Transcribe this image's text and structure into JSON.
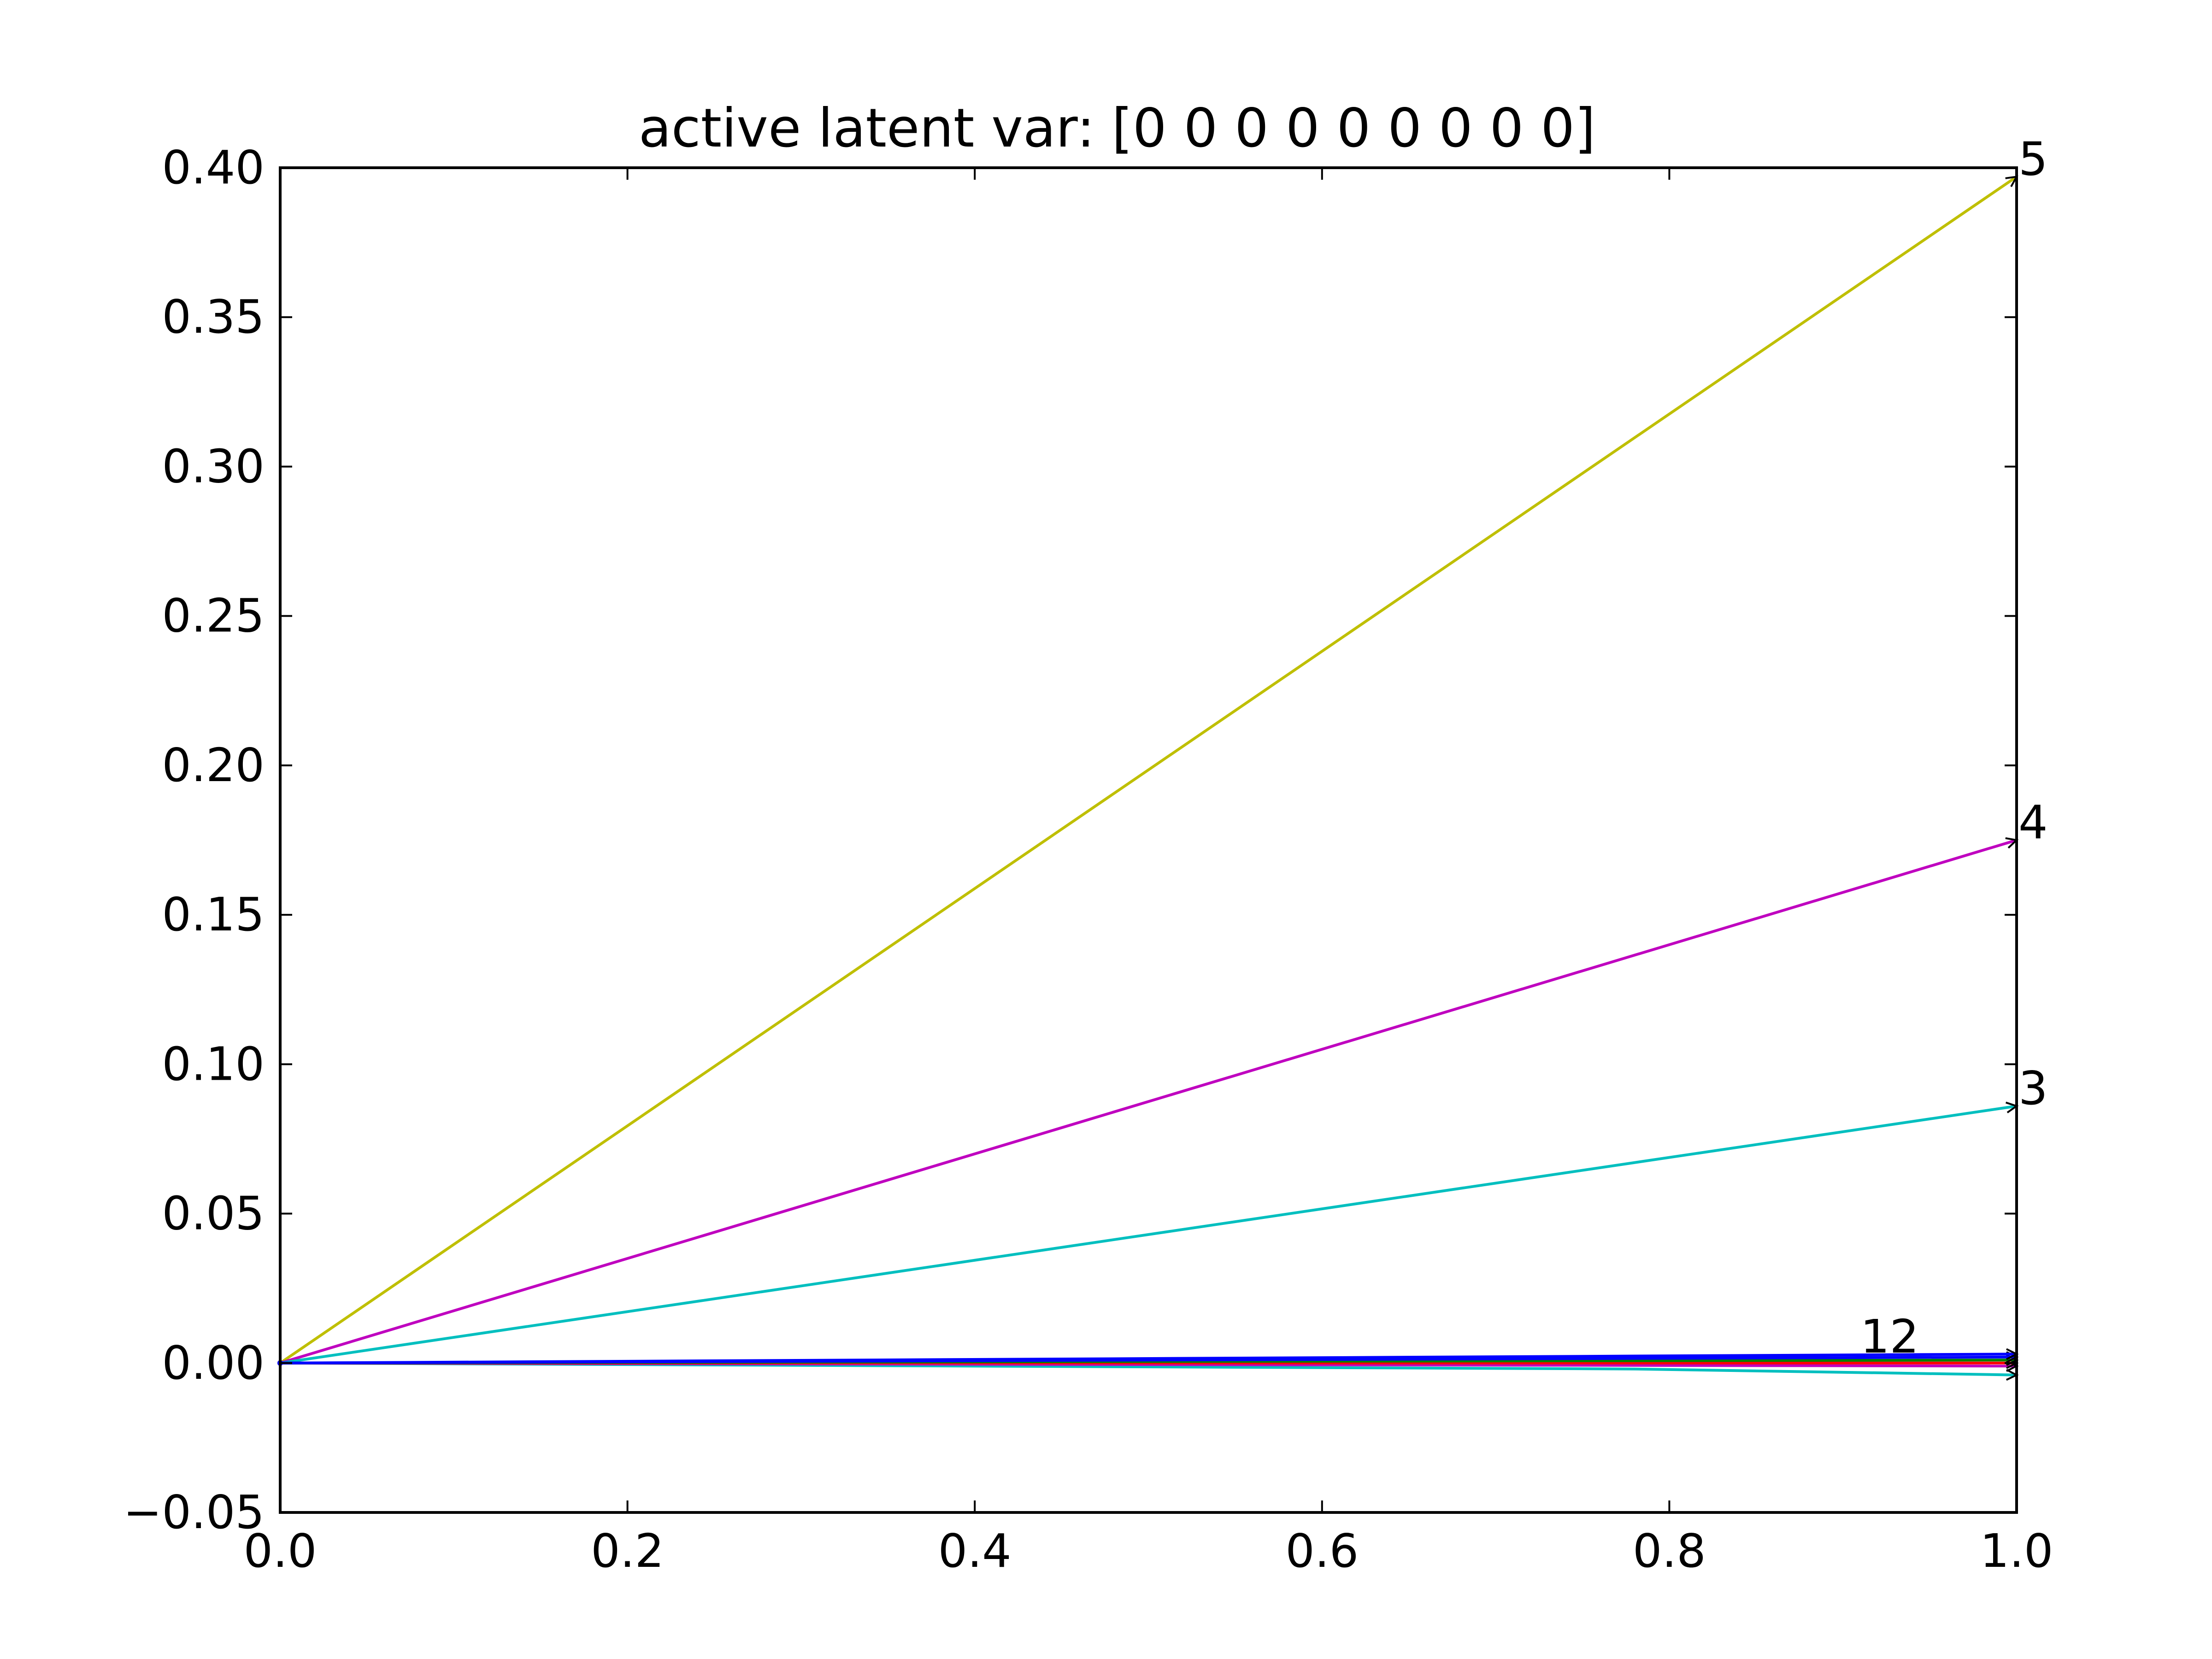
{
  "chart_data": {
    "type": "line",
    "title": "active latent var: [0 0 0 0 0 0 0 0 0]",
    "xlabel": "",
    "ylabel": "",
    "xlim": [
      0.0,
      1.0
    ],
    "ylim": [
      -0.05,
      0.4
    ],
    "grid": false,
    "xticks": [
      "0.0",
      "0.2",
      "0.4",
      "0.6",
      "0.8",
      "1.0"
    ],
    "yticks": [
      "−0.05",
      "0.00",
      "0.05",
      "0.10",
      "0.15",
      "0.20",
      "0.25",
      "0.30",
      "0.35",
      "0.40"
    ],
    "series": [
      {
        "color": "#bfbf00",
        "x": [
          0.0,
          1.0
        ],
        "y": [
          0.0,
          0.397
        ],
        "end_label": "5"
      },
      {
        "color": "#bf00bf",
        "x": [
          0.0,
          1.0
        ],
        "y": [
          0.0,
          0.175
        ],
        "end_label": "4"
      },
      {
        "color": "#00bfbf",
        "x": [
          0.0,
          1.0
        ],
        "y": [
          0.0,
          0.086
        ],
        "end_label": "3"
      },
      {
        "color": "#00bfbf",
        "x": [
          0.0,
          0.78,
          1.0
        ],
        "y": [
          0.0,
          -0.002,
          -0.004
        ],
        "end_label": ""
      },
      {
        "color": "#bf00bf",
        "x": [
          0.0,
          1.0
        ],
        "y": [
          0.0,
          -0.001
        ],
        "end_label": ""
      },
      {
        "color": "#ff0000",
        "x": [
          0.0,
          1.0
        ],
        "y": [
          0.0,
          0.0
        ],
        "end_label": ""
      },
      {
        "color": "#008000",
        "x": [
          0.0,
          1.0
        ],
        "y": [
          0.0,
          0.001
        ],
        "end_label": ""
      },
      {
        "color": "#0000ff",
        "x": [
          0.0,
          1.0
        ],
        "y": [
          0.0,
          0.002
        ],
        "end_label": ""
      },
      {
        "color": "#0000ff",
        "x": [
          0.0,
          1.0
        ],
        "y": [
          0.0,
          0.003
        ],
        "end_label": ""
      }
    ],
    "annotations": [
      {
        "text": "12",
        "x": 0.91,
        "y": 0.002
      }
    ]
  }
}
